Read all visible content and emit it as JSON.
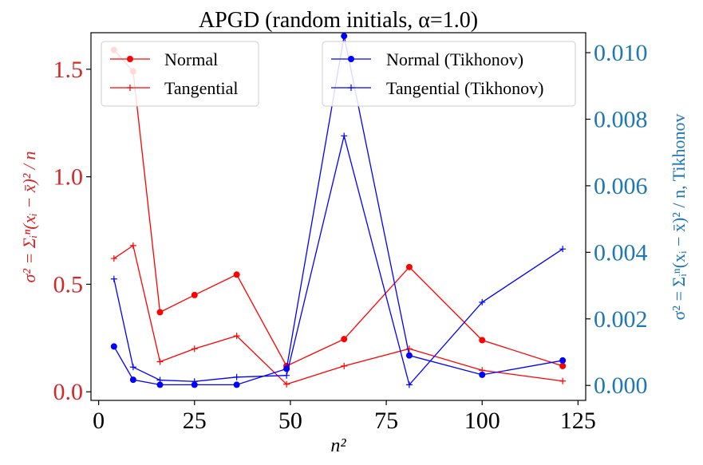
{
  "chart_data": {
    "type": "line",
    "title": "APGD (random initials, α=1.0)",
    "xlabel": "n²",
    "ylabel_left": "σ² = Σᵢⁿ(xᵢ − x̄)² / n",
    "ylabel_right": "σ² = Σᵢⁿ(xᵢ − x̄)² / n, Tikhonov",
    "xlim": [
      -2,
      127
    ],
    "ylim_left": [
      -0.04,
      1.67
    ],
    "ylim_right": [
      -0.00045,
      0.0106
    ],
    "x_ticks": [
      0,
      25,
      50,
      75,
      100,
      125
    ],
    "x_tick_labels": [
      "0",
      "25",
      "50",
      "75",
      "100",
      "125"
    ],
    "y_left_ticks": [
      0.0,
      0.5,
      1.0,
      1.5
    ],
    "y_left_tick_labels": [
      "0.0",
      "0.5",
      "1.0",
      "1.5"
    ],
    "y_right_ticks": [
      0.0,
      0.002,
      0.004,
      0.006,
      0.008,
      0.01
    ],
    "y_right_tick_labels": [
      "0.000",
      "0.002",
      "0.004",
      "0.006",
      "0.008",
      "0.010"
    ],
    "x": [
      4,
      9,
      16,
      25,
      36,
      49,
      64,
      81,
      100,
      121
    ],
    "series": [
      {
        "name": "Normal",
        "axis": "left",
        "color": "#ff0000",
        "marker": "circle",
        "values": [
          1.59,
          1.49,
          0.37,
          0.45,
          0.545,
          0.12,
          0.245,
          0.58,
          0.24,
          0.12
        ]
      },
      {
        "name": "Tangential",
        "axis": "left",
        "color": "#ff0000",
        "marker": "plus",
        "values": [
          0.62,
          0.68,
          0.14,
          0.2,
          0.26,
          0.035,
          0.12,
          0.2,
          0.1,
          0.05
        ]
      },
      {
        "name": "Normal (Tikhonov)",
        "axis": "right",
        "color": "#0000ff",
        "marker": "circle",
        "values": [
          0.00117,
          0.00017,
          2e-05,
          2e-05,
          2e-05,
          0.0005,
          0.0105,
          0.0009,
          0.00032,
          0.00075
        ]
      },
      {
        "name": "Tangential (Tikhonov)",
        "axis": "right",
        "color": "#0000ff",
        "marker": "plus",
        "values": [
          0.0032,
          0.00055,
          0.00016,
          0.00012,
          0.00025,
          0.0003,
          0.0075,
          2e-05,
          0.0025,
          0.0041
        ]
      }
    ],
    "legend_left_placement": "upper-left",
    "legend_right_placement": "upper-right",
    "grid": false,
    "colors": {
      "left_axis": "#d62728",
      "right_axis": "#1f77b4"
    }
  }
}
